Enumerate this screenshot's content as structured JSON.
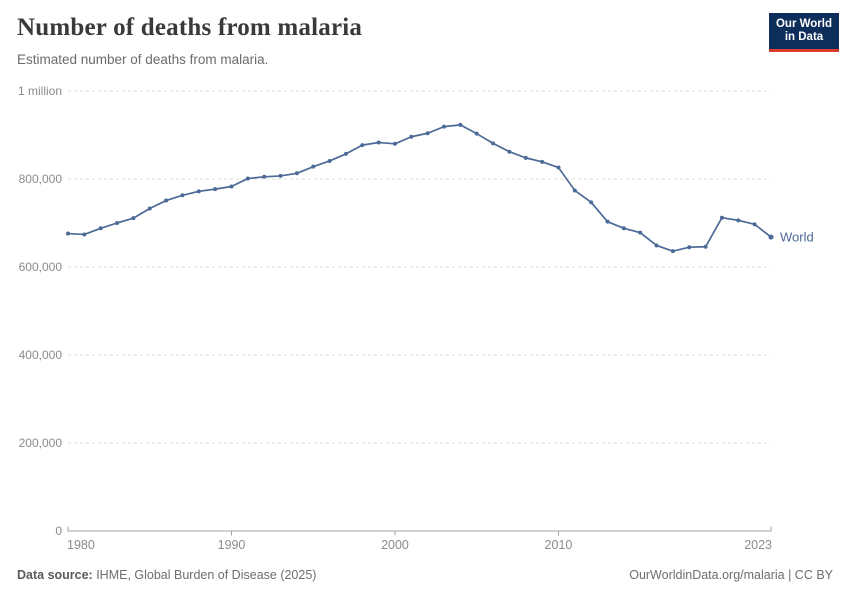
{
  "header": {
    "title": "Number of deaths from malaria",
    "subtitle": "Estimated number of deaths from malaria.",
    "logo": {
      "line1": "Our World",
      "line2": "in Data"
    }
  },
  "colors": {
    "line": "#4c6a97",
    "end_label": "#4c6a97",
    "grid": "#dedede",
    "axis": "#a3a3a3",
    "tick_label": "#8b8b8b",
    "logo_bg": "#0d2e5a",
    "logo_red": "#dc3c2c"
  },
  "chart_data": {
    "type": "line",
    "title": "Number of deaths from malaria",
    "subtitle": "Estimated number of deaths from malaria.",
    "xlabel": "",
    "ylabel": "",
    "xlim": [
      1980,
      2023
    ],
    "ylim": [
      0,
      1000000
    ],
    "grid": "horizontal-dashed",
    "legend_position": "end-of-line",
    "x_ticks": [
      1980,
      1990,
      2000,
      2010,
      2023
    ],
    "y_ticks": [
      {
        "value": 0,
        "label": "0"
      },
      {
        "value": 200000,
        "label": "200,000"
      },
      {
        "value": 400000,
        "label": "400,000"
      },
      {
        "value": 600000,
        "label": "600,000"
      },
      {
        "value": 800000,
        "label": "800,000"
      },
      {
        "value": 1000000,
        "label": "1 million"
      }
    ],
    "series": [
      {
        "name": "World",
        "x": [
          1980,
          1981,
          1982,
          1983,
          1984,
          1985,
          1986,
          1987,
          1988,
          1989,
          1990,
          1991,
          1992,
          1993,
          1994,
          1995,
          1996,
          1997,
          1998,
          1999,
          2000,
          2001,
          2002,
          2003,
          2004,
          2005,
          2006,
          2007,
          2008,
          2009,
          2010,
          2011,
          2012,
          2013,
          2014,
          2015,
          2016,
          2017,
          2018,
          2019,
          2020,
          2021,
          2022,
          2023
        ],
        "values": [
          676000,
          674000,
          688000,
          700000,
          711000,
          733000,
          751000,
          763000,
          772000,
          777000,
          783000,
          801000,
          805000,
          807000,
          813000,
          828000,
          841000,
          857000,
          877000,
          883000,
          880000,
          896000,
          904000,
          919000,
          923000,
          903000,
          881000,
          862000,
          848000,
          839000,
          826000,
          774000,
          747000,
          703000,
          688000,
          678000,
          649000,
          636000,
          645000,
          646000,
          712000,
          706000,
          697000,
          668000
        ]
      }
    ]
  },
  "footer": {
    "source_label": "Data source:",
    "source_text": " IHME, Global Burden of Disease (2025)",
    "attribution": "OurWorldinData.org/malaria | CC BY"
  }
}
